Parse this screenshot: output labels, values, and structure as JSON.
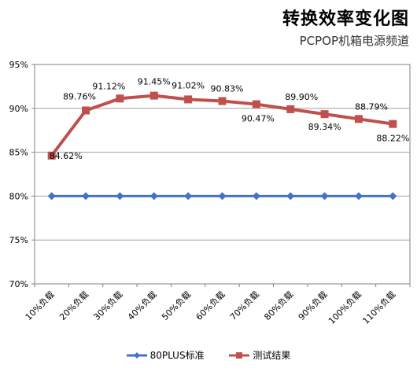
{
  "chart_data": {
    "type": "line",
    "title": "转换效率变化图",
    "subtitle": "PCPOP机箱电源频道",
    "categories": [
      "10%负载",
      "20%负载",
      "30%负载",
      "40%负载",
      "50%负载",
      "60%负载",
      "70%负载",
      "80%负载",
      "90%负载",
      "100%负载",
      "110%负载"
    ],
    "ylim": [
      70,
      95
    ],
    "yticks": [
      "70%",
      "75%",
      "80%",
      "85%",
      "90%",
      "95%"
    ],
    "grid": true,
    "legend_position": "bottom",
    "series": [
      {
        "name": "80PLUS标准",
        "values": [
          80,
          80,
          80,
          80,
          80,
          80,
          80,
          80,
          80,
          80,
          80
        ],
        "color": "#4472C4",
        "marker": "diamond"
      },
      {
        "name": "测试结果",
        "values": [
          84.62,
          89.76,
          91.12,
          91.45,
          91.02,
          90.83,
          90.47,
          89.9,
          89.34,
          88.79,
          88.22
        ],
        "labels": [
          "84.62%",
          "89.76%",
          "91.12%",
          "91.45%",
          "91.02%",
          "90.83%",
          "90.47%",
          "89.90%",
          "89.34%",
          "88.79%",
          "88.22%"
        ],
        "color": "#C0504D",
        "marker": "square"
      }
    ]
  }
}
